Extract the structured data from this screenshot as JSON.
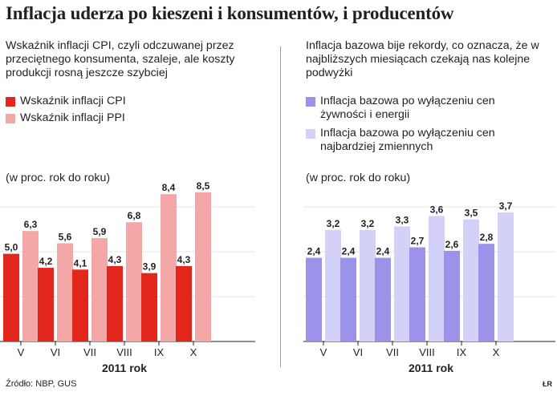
{
  "title": "Inflacja uderza po kieszeni i konsumentów, i producentów",
  "left_panel": {
    "description": "Wskaźnik inflacji CPI, czyli odczuwanej przez przeciętnego konsumenta, szaleje, ale koszty produkcji rosną jeszcze szybciej",
    "legend": [
      {
        "label": "Wskaźnik inflacji CPI",
        "color": "#e2261c"
      },
      {
        "label": "Wskaźnik inflacji PPI",
        "color": "#f4a7a7"
      }
    ],
    "unit": "(w proc. rok do roku)"
  },
  "right_panel": {
    "description": "Inflacja bazowa bije rekordy, co oznacza, że w najbliższych miesiącach czekają nas kolejne podwyżki",
    "legend": [
      {
        "label": "Inflacja bazowa po wyłączeniu cen żywności i energii",
        "color": "#9d92ea"
      },
      {
        "label": "Inflacja bazowa po wyłączeniu cen najbardziej zmiennych",
        "color": "#d3d1f8"
      }
    ],
    "unit": "(w proc. rok do roku)"
  },
  "chart_data": [
    {
      "type": "bar",
      "categories": [
        "V",
        "VI",
        "VII",
        "VIII",
        "IX",
        "X"
      ],
      "xlabel": "2011 rok",
      "ylabel": "(w proc. rok do roku)",
      "ylim": [
        0,
        8.5
      ],
      "series": [
        {
          "name": "Wskaźnik inflacji CPI",
          "color": "#e2261c",
          "values": [
            5.0,
            4.2,
            4.1,
            4.3,
            3.9,
            4.3
          ],
          "labels": [
            "5,0",
            "4,2",
            "4,1",
            "4,3",
            "3,9",
            "4,3"
          ]
        },
        {
          "name": "Wskaźnik inflacji PPI",
          "color": "#f4a7a7",
          "values": [
            6.3,
            5.6,
            5.9,
            6.8,
            8.4,
            8.5
          ],
          "labels": [
            "6,3",
            "5,6",
            "5,9",
            "6,8",
            "8,4",
            "8,5"
          ]
        }
      ]
    },
    {
      "type": "bar",
      "categories": [
        "V",
        "VI",
        "VII",
        "VIII",
        "IX",
        "X"
      ],
      "xlabel": "2011 rok",
      "ylabel": "(w proc. rok do roku)",
      "ylim": [
        0,
        3.7
      ],
      "series": [
        {
          "name": "Inflacja bazowa po wyłączeniu cen żywności i energii",
          "color": "#9d92ea",
          "values": [
            2.4,
            2.4,
            2.4,
            2.7,
            2.6,
            2.8
          ],
          "labels": [
            "2,4",
            "2,4",
            "2,4",
            "2,7",
            "2,6",
            "2,8"
          ]
        },
        {
          "name": "Inflacja bazowa po wyłączeniu cen najbardziej zmiennych",
          "color": "#d3d1f8",
          "values": [
            3.2,
            3.2,
            3.3,
            3.6,
            3.5,
            3.7
          ],
          "labels": [
            "3,2",
            "3,2",
            "3,3",
            "3,6",
            "3,5",
            "3,7"
          ]
        }
      ]
    }
  ],
  "source": "Źródło: NBP, GUS",
  "credit": "ŁR"
}
